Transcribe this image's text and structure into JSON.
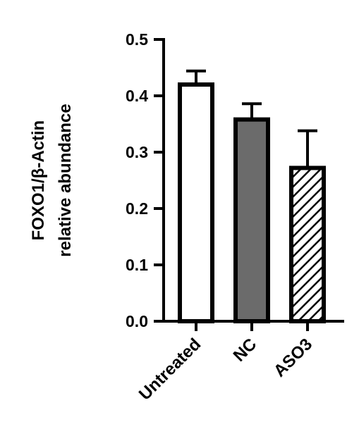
{
  "chart_data": {
    "type": "bar",
    "categories": [
      "Untreated",
      "NC",
      "ASO3"
    ],
    "values": [
      0.42,
      0.358,
      0.272
    ],
    "errors": [
      0.024,
      0.028,
      0.066
    ],
    "ylabel_line1": "FOXO1/β-Actin",
    "ylabel_line2": "relative abundance",
    "xlabel": "",
    "title": "",
    "ylim": [
      0,
      0.5
    ],
    "yticks": [
      "0.0",
      "0.1",
      "0.2",
      "0.3",
      "0.4",
      "0.5"
    ],
    "ytick_values": [
      0,
      0.1,
      0.2,
      0.3,
      0.4,
      0.5
    ],
    "bar_fills": [
      "white",
      "gray",
      "hatched"
    ],
    "colors": {
      "outline": "#000000",
      "gray": "#6b6b6b",
      "white": "#ffffff"
    },
    "grid": false,
    "legend": "none"
  }
}
